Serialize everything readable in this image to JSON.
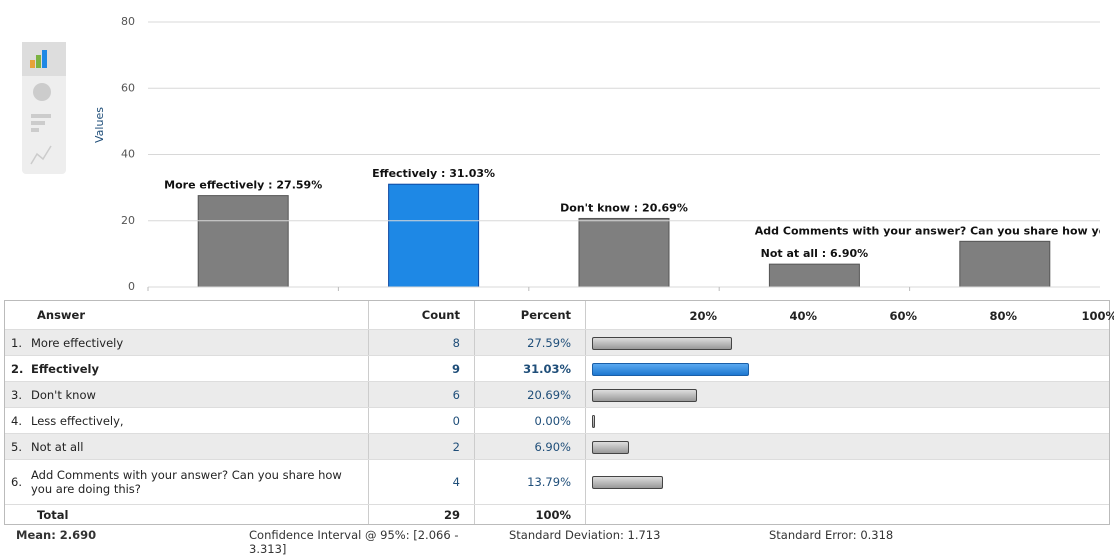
{
  "chart_data": {
    "type": "bar",
    "y_label": "Values",
    "values": [
      27.59,
      31.03,
      20.69,
      6.9,
      13.79
    ],
    "value_labels": [
      "More effectively : 27.59%",
      "Effectively : 31.03%",
      "Don't know : 20.69%",
      "Not at all : 6.90%",
      "Add Comments with your answer? Can you share how you"
    ],
    "colors": [
      "#7f7f7f",
      "#1e88e5",
      "#7f7f7f",
      "#7f7f7f",
      "#7f7f7f"
    ],
    "ylim": [
      0,
      80
    ],
    "yticks": [
      0,
      20,
      40,
      60,
      80
    ],
    "grid": true
  },
  "table": {
    "headers": [
      "Answer",
      "Count",
      "Percent"
    ],
    "scale": {
      "lim": [
        0,
        100
      ],
      "ticks": [
        {
          "value": 20,
          "label": "20%"
        },
        {
          "value": 40,
          "label": "40%"
        },
        {
          "value": 60,
          "label": "60%"
        },
        {
          "value": 80,
          "label": "80%"
        },
        {
          "value": 100,
          "label": "100%"
        }
      ]
    },
    "rows": [
      {
        "number": "1.",
        "answer": "More effectively",
        "count": 8,
        "percent": 27.59,
        "percent_label": "27.59%"
      },
      {
        "number": "2.",
        "answer": "Effectively",
        "count": 9,
        "percent": 31.03,
        "percent_label": "31.03%"
      },
      {
        "number": "3.",
        "answer": "Don't know",
        "count": 6,
        "percent": 20.69,
        "percent_label": "20.69%"
      },
      {
        "number": "4.",
        "answer": "Less effectively,",
        "count": 0,
        "percent": 0.0,
        "percent_label": "0.00%"
      },
      {
        "number": "5.",
        "answer": "Not at all",
        "count": 2,
        "percent": 6.9,
        "percent_label": "6.90%"
      },
      {
        "number": "6.",
        "answer": "Add Comments with your answer? Can you share how you are doing this?",
        "count": 4,
        "percent": 13.79,
        "percent_label": "13.79%"
      }
    ],
    "total": {
      "label": "Total",
      "count": 29,
      "percent": "100%"
    },
    "stats": {
      "mean": "Mean: 2.690",
      "ci": "Confidence Interval @ 95%: [2.066 - 3.313]",
      "sd": "Standard Deviation: 1.713",
      "se": "Standard Error: 0.318"
    }
  }
}
